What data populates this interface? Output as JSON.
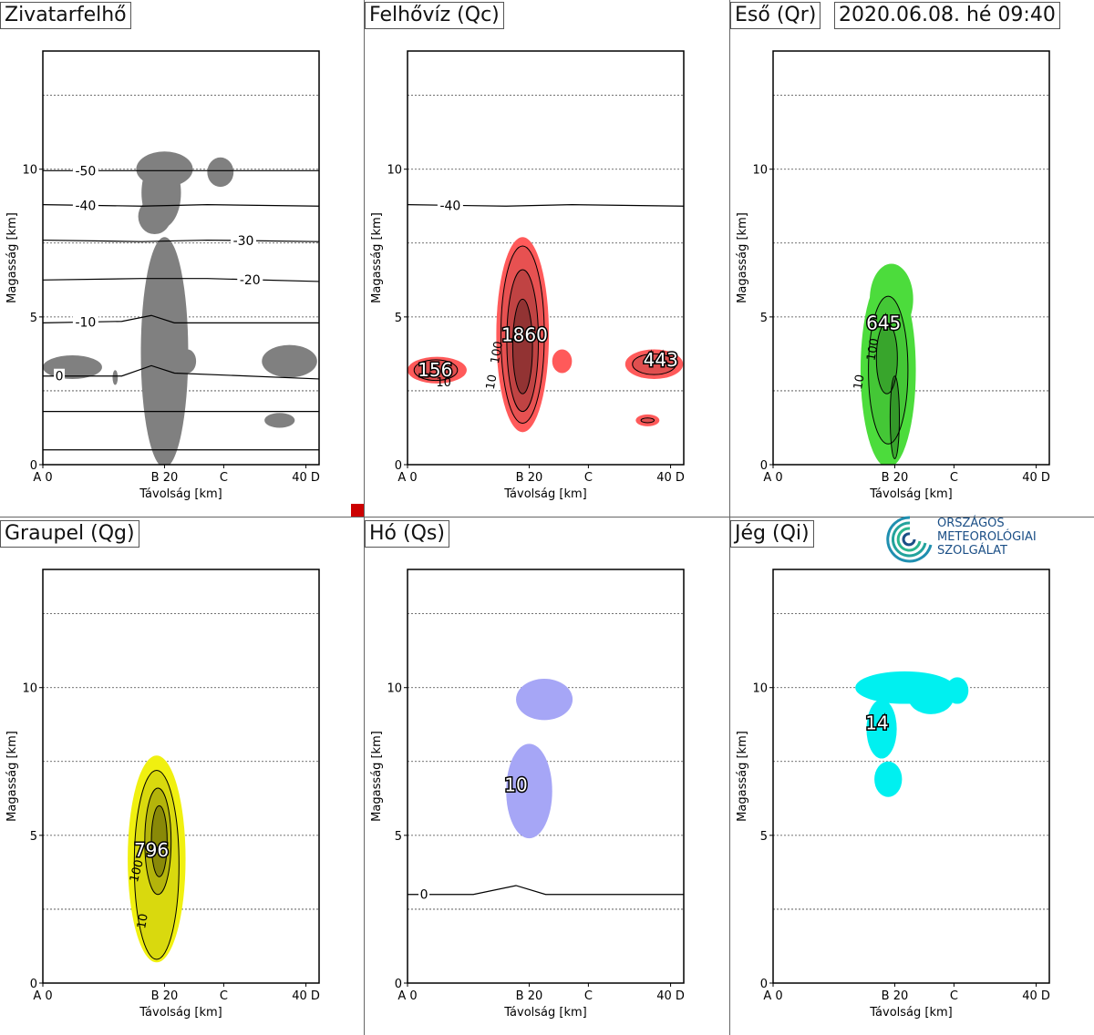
{
  "header": {
    "timestamp": "2020.06.08. hé 09:40"
  },
  "logo": {
    "lines": [
      "ORSZÁGOS",
      "METEOROLÓGIAI",
      "SZOLGÁLAT"
    ]
  },
  "chart_data": [
    {
      "type": "heatmap",
      "title": "Zivatarfelhő",
      "xlabel": "Távolság [km]",
      "ylabel": "Magasság [km]",
      "xlim": [
        0,
        42
      ],
      "ylim": [
        0,
        14
      ],
      "x_ticks": [
        {
          "x": 0,
          "label": "A 0"
        },
        {
          "x": 18.5,
          "label": "B 20"
        },
        {
          "x": 27.5,
          "label": "C"
        },
        {
          "x": 40,
          "label": "40 D"
        }
      ],
      "y_ticks": [
        0,
        5,
        10
      ],
      "dotted_gridlines_y": [
        2.5,
        5,
        7.5,
        10,
        12.5
      ],
      "fill_color": "#808080",
      "isotherms": [
        {
          "label": "-50",
          "label_x": 6.5,
          "points": [
            [
              0,
              9.95
            ],
            [
              15,
              9.95
            ],
            [
              25,
              9.95
            ],
            [
              42,
              9.95
            ]
          ]
        },
        {
          "label": "-40",
          "label_x": 6.5,
          "points": [
            [
              0,
              8.8
            ],
            [
              15,
              8.75
            ],
            [
              25,
              8.8
            ],
            [
              42,
              8.75
            ]
          ]
        },
        {
          "label": "-30",
          "label_x": 30.5,
          "points": [
            [
              0,
              7.6
            ],
            [
              15,
              7.55
            ],
            [
              25,
              7.6
            ],
            [
              42,
              7.55
            ]
          ]
        },
        {
          "label": "-20",
          "label_x": 31.5,
          "points": [
            [
              0,
              6.25
            ],
            [
              15,
              6.3
            ],
            [
              25,
              6.3
            ],
            [
              42,
              6.2
            ]
          ]
        },
        {
          "label": "-10",
          "label_x": 6.5,
          "points": [
            [
              0,
              4.8
            ],
            [
              12,
              4.85
            ],
            [
              16.5,
              5.05
            ],
            [
              20,
              4.8
            ],
            [
              42,
              4.8
            ]
          ]
        },
        {
          "label": "0",
          "label_x": 2.5,
          "points": [
            [
              0,
              3
            ],
            [
              12,
              3
            ],
            [
              16.5,
              3.35
            ],
            [
              20,
              3.1
            ],
            [
              42,
              2.9
            ]
          ]
        },
        {
          "label": "",
          "points": [
            [
              0,
              1.8
            ],
            [
              42,
              1.8
            ]
          ]
        },
        {
          "label": "",
          "points": [
            [
              0,
              0.5
            ],
            [
              42,
              0.5
            ]
          ]
        }
      ],
      "blobs": [
        {
          "cx": 18.5,
          "cy": 3.8,
          "rx": 3.6,
          "ry": 3.9
        },
        {
          "cx": 4.5,
          "cy": 3.3,
          "rx": 4.5,
          "ry": 0.4
        },
        {
          "cx": 11,
          "cy": 2.95,
          "rx": 0.4,
          "ry": 0.25
        },
        {
          "cx": 22,
          "cy": 3.5,
          "rx": 1.3,
          "ry": 0.4
        },
        {
          "cx": 37.5,
          "cy": 3.5,
          "rx": 4.2,
          "ry": 0.55
        },
        {
          "cx": 36,
          "cy": 1.5,
          "rx": 2.3,
          "ry": 0.25
        },
        {
          "cx": 18,
          "cy": 9.2,
          "rx": 3,
          "ry": 1.2
        },
        {
          "cx": 18.5,
          "cy": 10,
          "rx": 4.3,
          "ry": 0.6
        },
        {
          "cx": 27,
          "cy": 9.9,
          "rx": 2,
          "ry": 0.5
        },
        {
          "cx": 17,
          "cy": 8.4,
          "rx": 2.5,
          "ry": 0.6
        }
      ],
      "contours": [],
      "labels": []
    },
    {
      "type": "heatmap",
      "title": "Felhővíz (Qc)",
      "xlabel": "Távolság [km]",
      "ylabel": "Magasság [km]",
      "xlim": [
        0,
        42
      ],
      "ylim": [
        0,
        14
      ],
      "x_ticks": [
        {
          "x": 0,
          "label": "A 0"
        },
        {
          "x": 18.5,
          "label": "B 20"
        },
        {
          "x": 27.5,
          "label": "C"
        },
        {
          "x": 40,
          "label": "40 D"
        }
      ],
      "y_ticks": [
        0,
        5,
        10
      ],
      "dotted_gridlines_y": [
        2.5,
        5,
        7.5,
        10,
        12.5
      ],
      "fill_color": "#ff5a5a",
      "isotherms": [
        {
          "label": "-40",
          "label_x": 6.5,
          "points": [
            [
              0,
              8.8
            ],
            [
              15,
              8.75
            ],
            [
              25,
              8.8
            ],
            [
              42,
              8.75
            ]
          ]
        }
      ],
      "blobs": [
        {
          "cx": 17.5,
          "cy": 4.4,
          "rx": 4,
          "ry": 3.3
        },
        {
          "cx": 4.5,
          "cy": 3.2,
          "rx": 4.5,
          "ry": 0.45
        },
        {
          "cx": 37.5,
          "cy": 3.4,
          "rx": 4.4,
          "ry": 0.5
        },
        {
          "cx": 23.5,
          "cy": 3.5,
          "rx": 1.5,
          "ry": 0.4
        },
        {
          "cx": 36.5,
          "cy": 1.5,
          "rx": 1.8,
          "ry": 0.2
        }
      ],
      "contours": [
        {
          "cx": 17.5,
          "cy": 4.4,
          "rx": 3.3,
          "ry": 3
        },
        {
          "cx": 17.5,
          "cy": 4.2,
          "rx": 2.4,
          "ry": 2.4
        },
        {
          "cx": 17.5,
          "cy": 4.0,
          "rx": 1.5,
          "ry": 1.6
        },
        {
          "cx": 4.3,
          "cy": 3.2,
          "rx": 3.3,
          "ry": 0.35
        },
        {
          "cx": 37.5,
          "cy": 3.4,
          "rx": 3.3,
          "ry": 0.35
        },
        {
          "cx": 36.5,
          "cy": 1.5,
          "rx": 1,
          "ry": 0.08
        }
      ],
      "labels": [
        {
          "text": "1860",
          "x": 17.8,
          "y": 4.4,
          "size": 20
        },
        {
          "text": "156",
          "x": 4.2,
          "y": 3.2,
          "size": 20
        },
        {
          "text": "443",
          "x": 38.5,
          "y": 3.55,
          "size": 20
        },
        {
          "text": "10",
          "x": 5.5,
          "y": 2.8,
          "size": 13
        },
        {
          "text": "100",
          "x": 13.5,
          "y": 3.8,
          "size": 13,
          "rotate": -80
        },
        {
          "text": "10",
          "x": 12.7,
          "y": 2.8,
          "size": 13,
          "rotate": -80
        }
      ]
    },
    {
      "type": "heatmap",
      "title": "Eső (Qr)",
      "xlabel": "Távolság [km]",
      "ylabel": "Magasság [km]",
      "xlim": [
        0,
        42
      ],
      "ylim": [
        0,
        14
      ],
      "x_ticks": [
        {
          "x": 0,
          "label": "A 0"
        },
        {
          "x": 18.5,
          "label": "B 20"
        },
        {
          "x": 27.5,
          "label": "C"
        },
        {
          "x": 40,
          "label": "40 D"
        }
      ],
      "y_ticks": [
        0,
        5,
        10
      ],
      "dotted_gridlines_y": [
        2.5,
        5,
        7.5,
        10,
        12.5
      ],
      "fill_color": "#4cdc3c",
      "isotherms": [],
      "blobs": [
        {
          "cx": 17.5,
          "cy": 3.2,
          "rx": 4.2,
          "ry": 3.3
        },
        {
          "cx": 18,
          "cy": 5.6,
          "rx": 3.3,
          "ry": 1.2
        }
      ],
      "contours": [
        {
          "cx": 17.5,
          "cy": 3.2,
          "rx": 3,
          "ry": 2.5
        },
        {
          "cx": 17.3,
          "cy": 3.6,
          "rx": 1.6,
          "ry": 1.2
        },
        {
          "cx": 18.5,
          "cy": 1.6,
          "rx": 0.7,
          "ry": 1.4
        }
      ],
      "labels": [
        {
          "text": "645",
          "x": 16.8,
          "y": 4.8,
          "size": 20
        },
        {
          "text": "10",
          "x": 13,
          "y": 2.8,
          "size": 13,
          "rotate": -80
        },
        {
          "text": "100",
          "x": 15.1,
          "y": 3.9,
          "size": 13,
          "rotate": -80
        }
      ]
    },
    {
      "type": "heatmap",
      "title": "Graupel (Qg)",
      "xlabel": "Távolság [km]",
      "ylabel": "Magasság [km]",
      "xlim": [
        0,
        42
      ],
      "ylim": [
        0,
        14
      ],
      "x_ticks": [
        {
          "x": 0,
          "label": "A 0"
        },
        {
          "x": 18.5,
          "label": "B 20"
        },
        {
          "x": 27.5,
          "label": "C"
        },
        {
          "x": 40,
          "label": "40 D"
        }
      ],
      "y_ticks": [
        0,
        5,
        10
      ],
      "dotted_gridlines_y": [
        2.5,
        5,
        7.5,
        10,
        12.5
      ],
      "fill_color": "#f0f010",
      "isotherms": [],
      "blobs": [
        {
          "cx": 17.3,
          "cy": 4.2,
          "rx": 4.4,
          "ry": 3.5
        }
      ],
      "contours": [
        {
          "cx": 17.3,
          "cy": 4.0,
          "rx": 3.4,
          "ry": 3.2
        },
        {
          "cx": 17.5,
          "cy": 4.8,
          "rx": 2,
          "ry": 1.8
        },
        {
          "cx": 17.7,
          "cy": 4.8,
          "rx": 1.2,
          "ry": 1.2
        }
      ],
      "labels": [
        {
          "text": "796",
          "x": 16.5,
          "y": 4.5,
          "size": 20
        },
        {
          "text": "100",
          "x": 14.2,
          "y": 3.8,
          "size": 13,
          "rotate": -75
        },
        {
          "text": "10",
          "x": 15.1,
          "y": 2.1,
          "size": 13,
          "rotate": -80
        }
      ]
    },
    {
      "type": "heatmap",
      "title": "Hó (Qs)",
      "xlabel": "Távolság [km]",
      "ylabel": "Magasság [km]",
      "xlim": [
        0,
        42
      ],
      "ylim": [
        0,
        14
      ],
      "x_ticks": [
        {
          "x": 0,
          "label": "A 0"
        },
        {
          "x": 18.5,
          "label": "B 20"
        },
        {
          "x": 27.5,
          "label": "C"
        },
        {
          "x": 40,
          "label": "40 D"
        }
      ],
      "y_ticks": [
        0,
        5,
        10
      ],
      "dotted_gridlines_y": [
        2.5,
        5,
        7.5,
        10,
        12.5
      ],
      "fill_color": "#a6a6f6",
      "isotherms": [
        {
          "label": "0",
          "label_x": 2.5,
          "points": [
            [
              0,
              3
            ],
            [
              10,
              3
            ],
            [
              16.5,
              3.3
            ],
            [
              21,
              3
            ],
            [
              42,
              3
            ]
          ]
        }
      ],
      "blobs": [
        {
          "cx": 18.5,
          "cy": 6.5,
          "rx": 3.5,
          "ry": 1.6
        },
        {
          "cx": 20.8,
          "cy": 9.6,
          "rx": 4.3,
          "ry": 0.7
        }
      ],
      "contours": [],
      "labels": [
        {
          "text": "10",
          "x": 16.5,
          "y": 6.7,
          "size": 20
        }
      ]
    },
    {
      "type": "heatmap",
      "title": "Jég (Qi)",
      "xlabel": "Távolság [km]",
      "ylabel": "Magasság [km]",
      "xlim": [
        0,
        42
      ],
      "ylim": [
        0,
        14
      ],
      "x_ticks": [
        {
          "x": 0,
          "label": "A 0"
        },
        {
          "x": 18.5,
          "label": "B 20"
        },
        {
          "x": 27.5,
          "label": "C"
        },
        {
          "x": 40,
          "label": "40 D"
        }
      ],
      "y_ticks": [
        0,
        5,
        10
      ],
      "dotted_gridlines_y": [
        2.5,
        5,
        7.5,
        10,
        12.5
      ],
      "fill_color": "#00f0f0",
      "isotherms": [],
      "blobs": [
        {
          "cx": 20,
          "cy": 10,
          "rx": 7.5,
          "ry": 0.55
        },
        {
          "cx": 24,
          "cy": 9.7,
          "rx": 3.5,
          "ry": 0.6
        },
        {
          "cx": 28,
          "cy": 9.9,
          "rx": 1.7,
          "ry": 0.45
        },
        {
          "cx": 16.5,
          "cy": 8.6,
          "rx": 2.3,
          "ry": 1
        },
        {
          "cx": 17.5,
          "cy": 6.9,
          "rx": 2.1,
          "ry": 0.6
        }
      ],
      "contours": [],
      "labels": [
        {
          "text": "14",
          "x": 15.8,
          "y": 8.8,
          "size": 20
        }
      ]
    }
  ]
}
